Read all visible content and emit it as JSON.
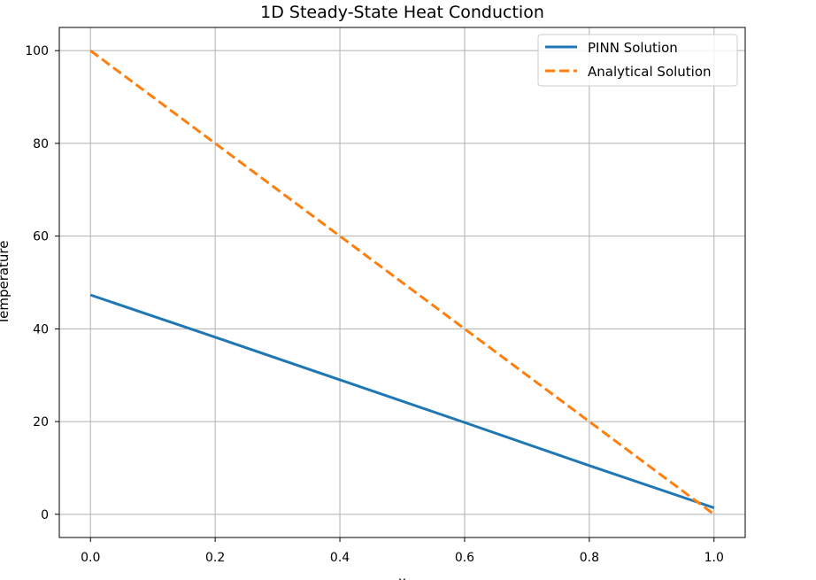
{
  "chart_data": {
    "type": "line",
    "title": "1D Steady-State Heat Conduction",
    "xlabel": "x",
    "ylabel": "Temperature",
    "xlim": [
      -0.05,
      1.05
    ],
    "ylim": [
      -5,
      105
    ],
    "xticks": [
      0.0,
      0.2,
      0.4,
      0.6,
      0.8,
      1.0
    ],
    "xtick_labels": [
      "0.0",
      "0.2",
      "0.4",
      "0.6",
      "0.8",
      "1.0"
    ],
    "yticks": [
      0,
      20,
      40,
      60,
      80,
      100
    ],
    "ytick_labels": [
      "0",
      "20",
      "40",
      "60",
      "80",
      "100"
    ],
    "grid": true,
    "legend_position": "top-right",
    "series": [
      {
        "name": "PINN Solution",
        "color": "#1f77b4",
        "style": "solid",
        "x": [
          0.0,
          0.2,
          0.4,
          0.6,
          0.8,
          1.0
        ],
        "y": [
          47.3,
          38.2,
          29.0,
          19.8,
          10.5,
          1.4
        ]
      },
      {
        "name": "Analytical Solution",
        "color": "#ff7f0e",
        "style": "dashed",
        "x": [
          0.0,
          0.2,
          0.4,
          0.6,
          0.8,
          1.0
        ],
        "y": [
          100,
          80,
          60,
          40,
          20,
          0
        ]
      }
    ]
  }
}
